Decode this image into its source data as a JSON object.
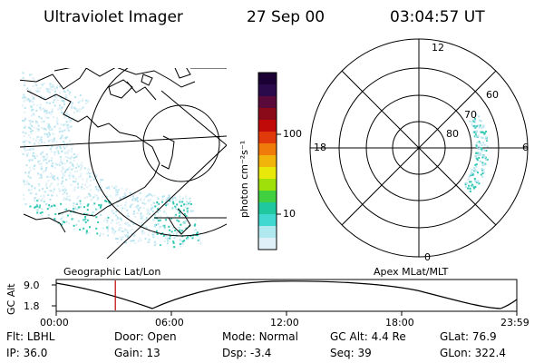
{
  "header": {
    "title": "Ultraviolet Imager",
    "date": "27 Sep 00",
    "time": "03:04:57 UT"
  },
  "colorbar": {
    "label": "photon cm⁻²s⁻¹",
    "ticks": [
      "100",
      "10"
    ],
    "colors": [
      "#1a0033",
      "#2a0a4a",
      "#5a0a3a",
      "#8a0a1a",
      "#c00a0a",
      "#e03a0a",
      "#f07a0a",
      "#f0b40a",
      "#e8e80a",
      "#a0e00a",
      "#40d040",
      "#20c8a0",
      "#40d8d0",
      "#b0e8f0",
      "#e0f0f8"
    ]
  },
  "left_panel": {
    "caption": "Geographic Lat/Lon"
  },
  "right_panel": {
    "caption": "Apex MLat/MLT",
    "mlt_labels": {
      "top": "12",
      "right": "6",
      "bottom": "0",
      "left": "18"
    },
    "lat_labels": [
      "60",
      "70",
      "80"
    ]
  },
  "timeline": {
    "ylabel": "GC Alt",
    "yticks": [
      "9.0",
      "1.8"
    ],
    "xticks": [
      "00:00",
      "06:00",
      "12:00",
      "18:00",
      "23:59"
    ],
    "marker_time_hours": 3.08
  },
  "info": [
    {
      "label": "Flt:",
      "value": "LBHL"
    },
    {
      "label": "Door:",
      "value": "Open"
    },
    {
      "label": "Mode:",
      "value": "Normal"
    },
    {
      "label": "GC Alt:",
      "value": "4.4 Re"
    },
    {
      "label": "GLat:",
      "value": "76.9"
    },
    {
      "label": "IP:",
      "value": "36.0"
    },
    {
      "label": "Gain:",
      "value": "13"
    },
    {
      "label": "Dsp:",
      "value": "-3.4"
    },
    {
      "label": "Seq:",
      "value": "39"
    },
    {
      "label": "GLon:",
      "value": "322.4"
    }
  ]
}
